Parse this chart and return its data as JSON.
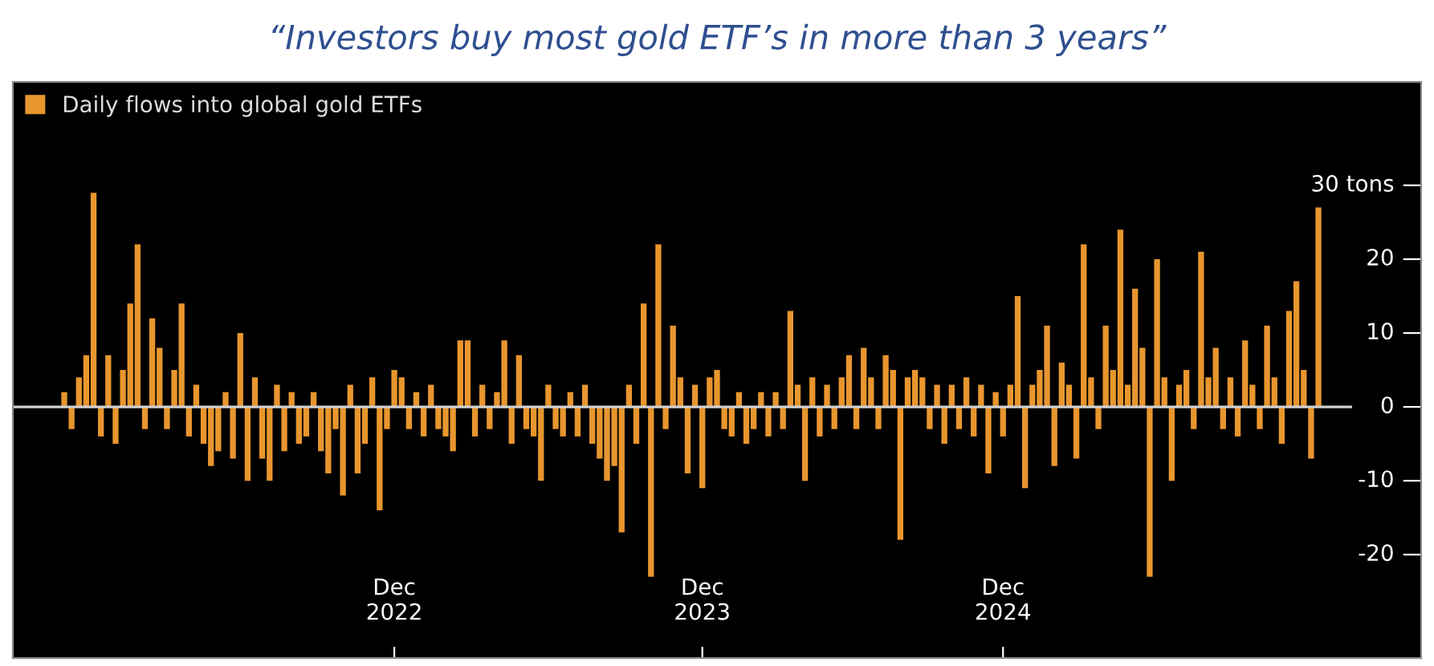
{
  "chart_data": {
    "type": "bar",
    "title": "“Investors buy most gold ETF’s in more than 3 years”",
    "categories": [
      null,
      null,
      null,
      null,
      null,
      null,
      null,
      null,
      null,
      null,
      null,
      null,
      null,
      null,
      null,
      null,
      null,
      null,
      null,
      null,
      null,
      null,
      null,
      null,
      null,
      null,
      null,
      null,
      null,
      null,
      null,
      null,
      null,
      null,
      null,
      null,
      null,
      null,
      null,
      null,
      null,
      null,
      null,
      null,
      null,
      "Dec\n2022",
      null,
      null,
      null,
      null,
      null,
      null,
      null,
      null,
      null,
      null,
      null,
      null,
      null,
      null,
      null,
      null,
      null,
      null,
      null,
      null,
      null,
      null,
      null,
      null,
      null,
      null,
      null,
      null,
      null,
      null,
      null,
      null,
      null,
      null,
      null,
      null,
      null,
      null,
      null,
      null,
      null,
      "Dec\n2023",
      null,
      null,
      null,
      null,
      null,
      null,
      null,
      null,
      null,
      null,
      null,
      null,
      null,
      null,
      null,
      null,
      null,
      null,
      null,
      null,
      null,
      null,
      null,
      null,
      null,
      null,
      null,
      null,
      null,
      null,
      null,
      null,
      null,
      null,
      null,
      null,
      null,
      null,
      null,
      null,
      "Dec\n2024",
      null,
      null,
      null,
      null,
      null,
      null,
      null,
      null,
      null,
      null,
      null,
      null,
      null,
      null,
      null,
      null,
      null,
      null,
      null,
      null,
      null,
      null,
      null,
      null,
      null,
      null,
      null,
      null,
      null,
      null,
      null,
      null,
      null,
      null,
      null,
      null,
      null,
      null,
      null,
      null,
      null,
      null,
      null
    ],
    "series": [
      {
        "name": "Daily flows into global gold ETFs",
        "color": "#e8962e",
        "values": [
          2,
          -3,
          4,
          7,
          29,
          -4,
          7,
          -5,
          5,
          14,
          22,
          -3,
          12,
          8,
          -3,
          5,
          14,
          -4,
          3,
          -5,
          -8,
          -6,
          2,
          -7,
          10,
          -10,
          4,
          -7,
          -10,
          3,
          -6,
          2,
          -5,
          -4,
          2,
          -6,
          -9,
          -3,
          -12,
          3,
          -9,
          -5,
          4,
          -14,
          -3,
          5,
          4,
          -3,
          2,
          -4,
          3,
          -3,
          -4,
          -6,
          9,
          9,
          -4,
          3,
          -3,
          2,
          9,
          -5,
          7,
          -3,
          -4,
          -10,
          3,
          -3,
          -4,
          2,
          -4,
          3,
          -5,
          -7,
          -10,
          -8,
          -17,
          3,
          -5,
          14,
          -23,
          22,
          -3,
          11,
          4,
          -9,
          3,
          -11,
          4,
          5,
          -3,
          -4,
          2,
          -5,
          -3,
          2,
          -4,
          2,
          -3,
          13,
          3,
          -10,
          4,
          -4,
          3,
          -3,
          4,
          7,
          -3,
          8,
          4,
          -3,
          7,
          5,
          -18,
          4,
          5,
          4,
          -3,
          3,
          -5,
          3,
          -3,
          4,
          -4,
          3,
          -9,
          2,
          -4,
          3,
          15,
          -11,
          3,
          5,
          11,
          -8,
          6,
          3,
          -7,
          22,
          4,
          -3,
          11,
          5,
          24,
          3,
          16,
          8,
          -23,
          20,
          4,
          -10,
          3,
          5,
          -3,
          21,
          4,
          8,
          -3,
          4,
          -4,
          9,
          3,
          -3,
          11,
          4,
          -5,
          13,
          17,
          5,
          -7,
          27
        ]
      }
    ],
    "ylim": [
      -34,
      44
    ],
    "yticks": [
      {
        "value": 30,
        "label": "30 tons"
      },
      20,
      10,
      0,
      -10,
      -20
    ],
    "ref_lines": [
      {
        "axis": "y",
        "value": 0,
        "color": "#cfcfcf"
      }
    ],
    "legend": "top left",
    "grid": false
  }
}
